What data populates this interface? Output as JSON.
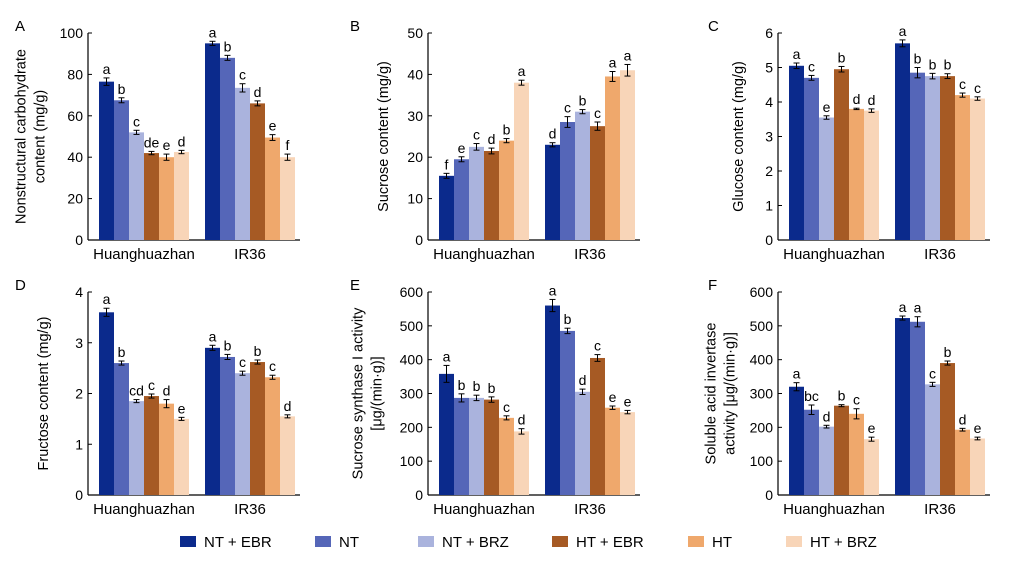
{
  "colors": [
    "#0b2a8c",
    "#5566b8",
    "#aab3dd",
    "#a65a24",
    "#efa86c",
    "#f8d5b8"
  ],
  "legend": [
    "NT + EBR",
    "NT",
    "NT + BRZ",
    "HT + EBR",
    "HT",
    "HT + BRZ"
  ],
  "chart_data": [
    {
      "type": "bar",
      "panel": "A",
      "ylabel_lines": [
        "Nonstructural carbohydrate",
        "content (mg/g)"
      ],
      "categories": [
        "Huanghuazhan",
        "IR36"
      ],
      "ylim": [
        0,
        100
      ],
      "yticks": [
        0,
        20,
        40,
        60,
        80,
        100
      ],
      "series": [
        {
          "name": "NT + EBR",
          "values": [
            76.5,
            95.0
          ],
          "errors": [
            1.8,
            1.0
          ],
          "letters": [
            "a",
            "a"
          ]
        },
        {
          "name": "NT",
          "values": [
            67.5,
            88.0
          ],
          "errors": [
            1.2,
            1.2
          ],
          "letters": [
            "b",
            "b"
          ]
        },
        {
          "name": "NT + BRZ",
          "values": [
            52.0,
            73.5
          ],
          "errors": [
            1.0,
            2.0
          ],
          "letters": [
            "c",
            "c"
          ]
        },
        {
          "name": "HT + EBR",
          "values": [
            42.0,
            66.0
          ],
          "errors": [
            0.8,
            1.2
          ],
          "letters": [
            "de",
            "d"
          ]
        },
        {
          "name": "HT",
          "values": [
            40.0,
            49.5
          ],
          "errors": [
            1.5,
            1.4
          ],
          "letters": [
            "e",
            "e"
          ]
        },
        {
          "name": "HT + BRZ",
          "values": [
            42.5,
            40.0
          ],
          "errors": [
            0.8,
            1.5
          ],
          "letters": [
            "d",
            "f"
          ]
        }
      ]
    },
    {
      "type": "bar",
      "panel": "B",
      "ylabel_lines": [
        "Sucrose content (mg/g)"
      ],
      "categories": [
        "Huanghuazhan",
        "IR36"
      ],
      "ylim": [
        0,
        50
      ],
      "yticks": [
        0,
        10,
        20,
        30,
        40,
        50
      ],
      "series": [
        {
          "name": "NT + EBR",
          "values": [
            15.5,
            23.0
          ],
          "errors": [
            0.6,
            0.5
          ],
          "letters": [
            "f",
            "d"
          ]
        },
        {
          "name": "NT",
          "values": [
            19.5,
            28.5
          ],
          "errors": [
            0.6,
            1.3
          ],
          "letters": [
            "e",
            "c"
          ]
        },
        {
          "name": "NT + BRZ",
          "values": [
            22.5,
            31.0
          ],
          "errors": [
            0.8,
            0.5
          ],
          "letters": [
            "c",
            "b"
          ]
        },
        {
          "name": "HT + EBR",
          "values": [
            21.5,
            27.5
          ],
          "errors": [
            0.7,
            1.0
          ],
          "letters": [
            "d",
            "c"
          ]
        },
        {
          "name": "HT",
          "values": [
            24.0,
            39.5
          ],
          "errors": [
            0.5,
            1.2
          ],
          "letters": [
            "b",
            "a"
          ]
        },
        {
          "name": "HT + BRZ",
          "values": [
            38.0,
            41.0
          ],
          "errors": [
            0.6,
            1.4
          ],
          "letters": [
            "a",
            "a"
          ]
        }
      ]
    },
    {
      "type": "bar",
      "panel": "C",
      "ylabel_lines": [
        "Glucose content (mg/g)"
      ],
      "categories": [
        "Huanghuazhan",
        "IR36"
      ],
      "ylim": [
        0,
        6
      ],
      "yticks": [
        0,
        1,
        2,
        3,
        4,
        5,
        6
      ],
      "series": [
        {
          "name": "NT + EBR",
          "values": [
            5.05,
            5.7
          ],
          "errors": [
            0.08,
            0.1
          ],
          "letters": [
            "a",
            "a"
          ]
        },
        {
          "name": "NT",
          "values": [
            4.7,
            4.85
          ],
          "errors": [
            0.07,
            0.15
          ],
          "letters": [
            "c",
            "b"
          ]
        },
        {
          "name": "NT + BRZ",
          "values": [
            3.55,
            4.75
          ],
          "errors": [
            0.05,
            0.08
          ],
          "letters": [
            "e",
            "b"
          ]
        },
        {
          "name": "HT + EBR",
          "values": [
            4.95,
            4.75
          ],
          "errors": [
            0.08,
            0.07
          ],
          "letters": [
            "b",
            "b"
          ]
        },
        {
          "name": "HT",
          "values": [
            3.8,
            4.2
          ],
          "errors": [
            0.02,
            0.06
          ],
          "letters": [
            "d",
            "c"
          ]
        },
        {
          "name": "HT + BRZ",
          "values": [
            3.75,
            4.1
          ],
          "errors": [
            0.05,
            0.05
          ],
          "letters": [
            "d",
            "c"
          ]
        }
      ]
    },
    {
      "type": "bar",
      "panel": "D",
      "ylabel_lines": [
        "Fructose content (mg/g)"
      ],
      "categories": [
        "Huanghuazhan",
        "IR36"
      ],
      "ylim": [
        0,
        4
      ],
      "yticks": [
        0,
        1,
        2,
        3,
        4
      ],
      "series": [
        {
          "name": "NT + EBR",
          "values": [
            3.6,
            2.9
          ],
          "errors": [
            0.08,
            0.05
          ],
          "letters": [
            "a",
            "a"
          ]
        },
        {
          "name": "NT",
          "values": [
            2.6,
            2.72
          ],
          "errors": [
            0.04,
            0.05
          ],
          "letters": [
            "b",
            "b"
          ]
        },
        {
          "name": "NT + BRZ",
          "values": [
            1.85,
            2.4
          ],
          "errors": [
            0.03,
            0.04
          ],
          "letters": [
            "cd",
            "c"
          ]
        },
        {
          "name": "HT + EBR",
          "values": [
            1.95,
            2.62
          ],
          "errors": [
            0.04,
            0.04
          ],
          "letters": [
            "c",
            "b"
          ]
        },
        {
          "name": "HT",
          "values": [
            1.8,
            2.32
          ],
          "errors": [
            0.08,
            0.04
          ],
          "letters": [
            "d",
            "c"
          ]
        },
        {
          "name": "HT + BRZ",
          "values": [
            1.5,
            1.55
          ],
          "errors": [
            0.03,
            0.03
          ],
          "letters": [
            "e",
            "d"
          ]
        }
      ]
    },
    {
      "type": "bar",
      "panel": "E",
      "ylabel_lines": [
        "Sucrose synthase I activity",
        "[μg/(min·g)]"
      ],
      "categories": [
        "Huanghuazhan",
        "IR36"
      ],
      "ylim": [
        0,
        600
      ],
      "yticks": [
        0,
        100,
        200,
        300,
        400,
        500,
        600
      ],
      "series": [
        {
          "name": "NT + EBR",
          "values": [
            358,
            560
          ],
          "errors": [
            25,
            18
          ],
          "letters": [
            "a",
            "a"
          ]
        },
        {
          "name": "NT",
          "values": [
            287,
            485
          ],
          "errors": [
            12,
            8
          ],
          "letters": [
            "b",
            "b"
          ]
        },
        {
          "name": "NT + BRZ",
          "values": [
            287,
            305
          ],
          "errors": [
            8,
            8
          ],
          "letters": [
            "b",
            "d"
          ]
        },
        {
          "name": "HT + EBR",
          "values": [
            282,
            405
          ],
          "errors": [
            8,
            10
          ],
          "letters": [
            "b",
            "c"
          ]
        },
        {
          "name": "HT",
          "values": [
            228,
            258
          ],
          "errors": [
            6,
            5
          ],
          "letters": [
            "c",
            "e"
          ]
        },
        {
          "name": "HT + BRZ",
          "values": [
            188,
            245
          ],
          "errors": [
            8,
            5
          ],
          "letters": [
            "d",
            "e"
          ]
        }
      ]
    },
    {
      "type": "bar",
      "panel": "F",
      "ylabel_lines": [
        "Soluble acid invertase",
        "activity [μg/(min·g)]"
      ],
      "categories": [
        "Huanghuazhan",
        "IR36"
      ],
      "ylim": [
        0,
        600
      ],
      "yticks": [
        0,
        100,
        200,
        300,
        400,
        500,
        600
      ],
      "series": [
        {
          "name": "NT + EBR",
          "values": [
            320,
            523
          ],
          "errors": [
            12,
            6
          ],
          "letters": [
            "a",
            "a"
          ]
        },
        {
          "name": "NT",
          "values": [
            252,
            512
          ],
          "errors": [
            14,
            15
          ],
          "letters": [
            "bc",
            "a"
          ]
        },
        {
          "name": "NT + BRZ",
          "values": [
            202,
            327
          ],
          "errors": [
            4,
            6
          ],
          "letters": [
            "d",
            "c"
          ]
        },
        {
          "name": "HT + EBR",
          "values": [
            264,
            390
          ],
          "errors": [
            3,
            6
          ],
          "letters": [
            "b",
            "b"
          ]
        },
        {
          "name": "HT",
          "values": [
            240,
            193
          ],
          "errors": [
            15,
            4
          ],
          "letters": [
            "c",
            "d"
          ]
        },
        {
          "name": "HT + BRZ",
          "values": [
            165,
            167
          ],
          "errors": [
            6,
            4
          ],
          "letters": [
            "e",
            "e"
          ]
        }
      ]
    }
  ]
}
